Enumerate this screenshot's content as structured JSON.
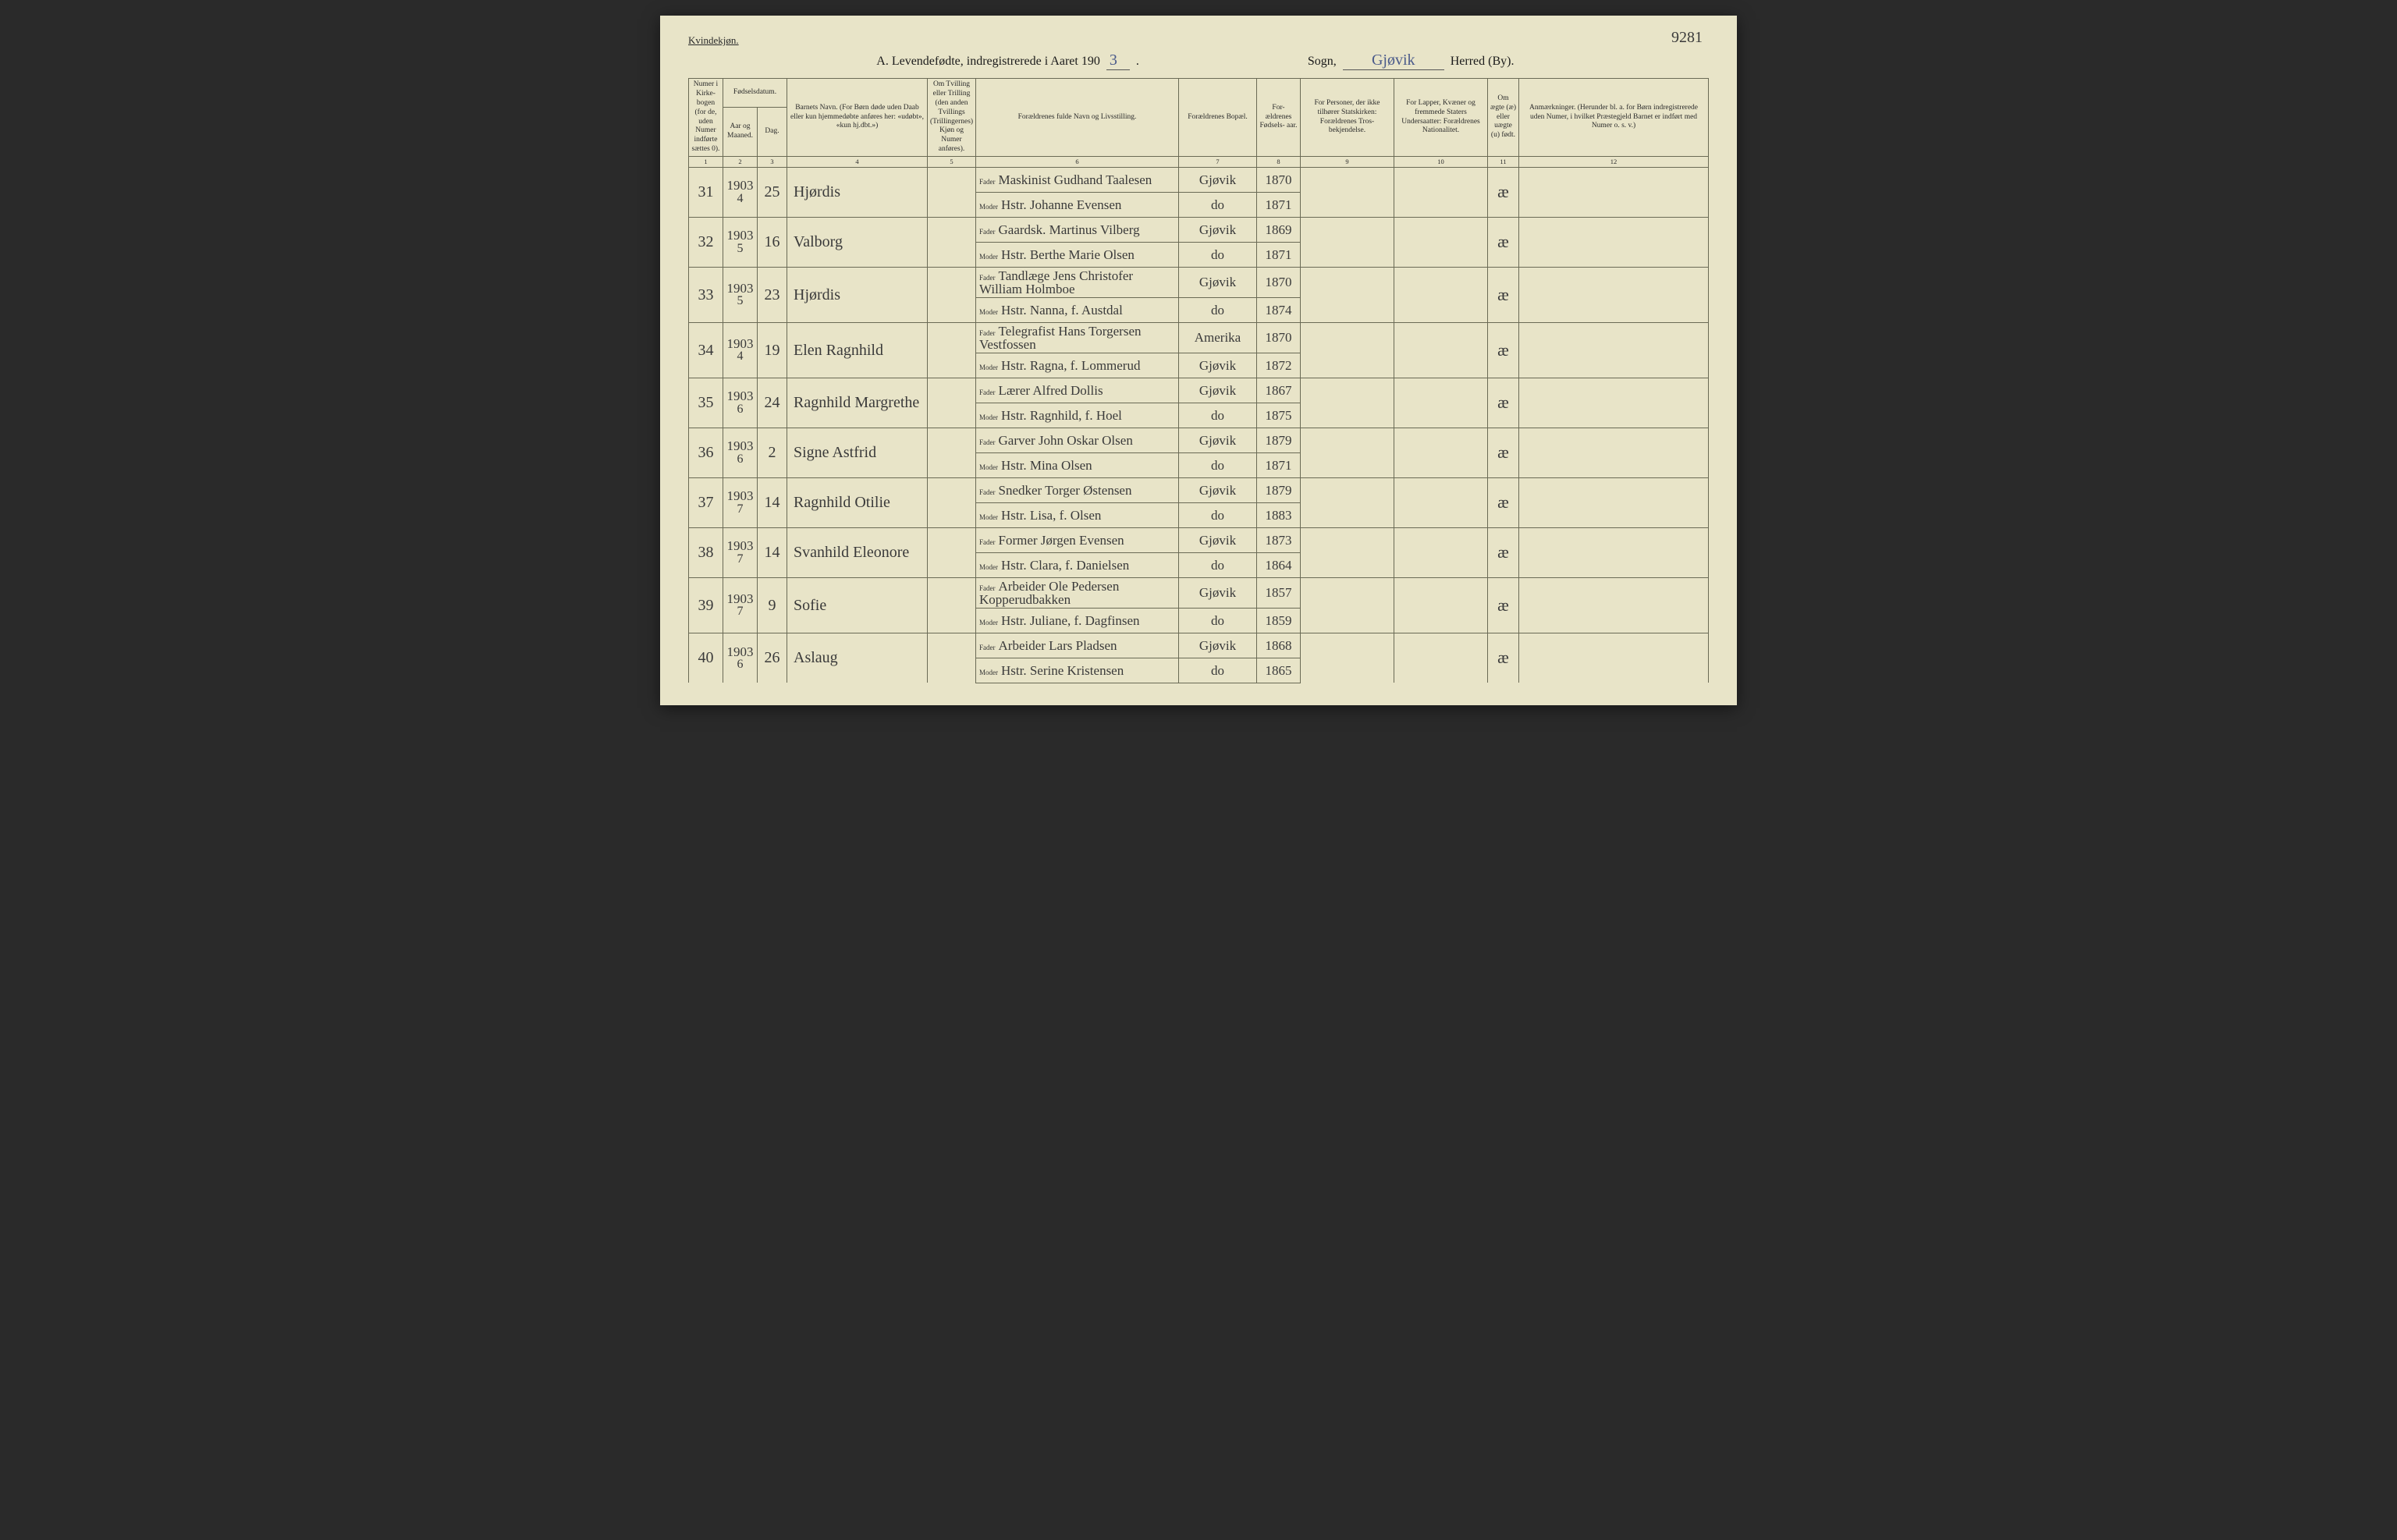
{
  "page_number": "9281",
  "top_label": "Kvindekjøn.",
  "title": {
    "prefix": "A. Levendefødte, indregistrerede i Aaret 190",
    "year_suffix": "3",
    "sogn_label": "Sogn,",
    "sogn_value": "Gjøvik",
    "herred_label": "Herred (By)."
  },
  "columns": {
    "c1": "Numer i Kirke- bogen (for de, uden Numer indførte sættes 0).",
    "c2_top": "Fødselsdatum.",
    "c2a": "Aar og Maaned.",
    "c2b": "Dag.",
    "c4": "Barnets Navn.\n(For Børn døde uden Daab eller kun hjemmedøbte anføres her: «udøbt», «kun hj.dbt.»)",
    "c5": "Om Tvilling eller Trilling (den anden Tvillings (Trillingernes) Kjøn og Numer anføres).",
    "c6": "Forældrenes fulde Navn og Livsstilling.",
    "c7": "Forældrenes Bopæl.",
    "c8": "For- ældrenes Fødsels- aar.",
    "c9": "For Personer, der ikke tilhører Statskirken: Forældrenes Tros- bekjendelse.",
    "c10": "For Lapper, Kvæner og fremmede Staters Undersaatter: Forældrenes Nationalitet.",
    "c11": "Om ægte (æ) eller uægte (u) født.",
    "c12": "Anmærkninger.\n(Herunder bl. a. for Børn indregistrerede uden Numer, i hvilket Præstegjeld Barnet er indført med Numer o. s. v.)"
  },
  "colnums": [
    "1",
    "2",
    "3",
    "4",
    "5",
    "6",
    "7",
    "8",
    "9",
    "10",
    "11",
    "12"
  ],
  "parent_labels": {
    "father": "Fader",
    "mother": "Moder"
  },
  "rows": [
    {
      "num": "31",
      "year": "1903",
      "month": "4",
      "day": "25",
      "name": "Hjørdis",
      "father": "Maskinist Gudhand Taalesen",
      "f_place": "Gjøvik",
      "f_year": "1870",
      "mother": "Hstr. Johanne Evensen",
      "m_place": "do",
      "m_year": "1871",
      "legit": "æ"
    },
    {
      "num": "32",
      "year": "1903",
      "month": "5",
      "day": "16",
      "name": "Valborg",
      "father": "Gaardsk. Martinus Vilberg",
      "f_place": "Gjøvik",
      "f_year": "1869",
      "mother": "Hstr. Berthe Marie Olsen",
      "m_place": "do",
      "m_year": "1871",
      "legit": "æ"
    },
    {
      "num": "33",
      "year": "1903",
      "month": "5",
      "day": "23",
      "name": "Hjørdis",
      "father": "Tandlæge Jens Christofer William Holmboe",
      "f_place": "Gjøvik",
      "f_year": "1870",
      "mother": "Hstr. Nanna, f. Austdal",
      "m_place": "do",
      "m_year": "1874",
      "legit": "æ"
    },
    {
      "num": "34",
      "year": "1903",
      "month": "4",
      "day": "19",
      "name": "Elen Ragnhild",
      "father": "Telegrafist Hans Torgersen Vestfossen",
      "f_place": "Amerika",
      "f_year": "1870",
      "mother": "Hstr. Ragna, f. Lommerud",
      "m_place": "Gjøvik",
      "m_year": "1872",
      "legit": "æ"
    },
    {
      "num": "35",
      "year": "1903",
      "month": "6",
      "day": "24",
      "name": "Ragnhild Margrethe",
      "father": "Lærer Alfred Dollis",
      "f_place": "Gjøvik",
      "f_year": "1867",
      "mother": "Hstr. Ragnhild, f. Hoel",
      "m_place": "do",
      "m_year": "1875",
      "legit": "æ"
    },
    {
      "num": "36",
      "year": "1903",
      "month": "6",
      "day": "2",
      "name": "Signe Astfrid",
      "father": "Garver John Oskar Olsen",
      "f_place": "Gjøvik",
      "f_year": "1879",
      "mother": "Hstr. Mina Olsen",
      "m_place": "do",
      "m_year": "1871",
      "legit": "æ"
    },
    {
      "num": "37",
      "year": "1903",
      "month": "7",
      "day": "14",
      "name": "Ragnhild Otilie",
      "father": "Snedker Torger Østensen",
      "f_place": "Gjøvik",
      "f_year": "1879",
      "mother": "Hstr. Lisa, f. Olsen",
      "m_place": "do",
      "m_year": "1883",
      "legit": "æ"
    },
    {
      "num": "38",
      "year": "1903",
      "month": "7",
      "day": "14",
      "name": "Svanhild Eleonore",
      "father": "Former Jørgen Evensen",
      "f_place": "Gjøvik",
      "f_year": "1873",
      "mother": "Hstr. Clara, f. Danielsen",
      "m_place": "do",
      "m_year": "1864",
      "legit": "æ"
    },
    {
      "num": "39",
      "year": "1903",
      "month": "7",
      "day": "9",
      "name": "Sofie",
      "father": "Arbeider Ole Pedersen Kopperudbakken",
      "f_place": "Gjøvik",
      "f_year": "1857",
      "mother": "Hstr. Juliane, f. Dagfinsen",
      "m_place": "do",
      "m_year": "1859",
      "legit": "æ"
    },
    {
      "num": "40",
      "year": "1903",
      "month": "6",
      "day": "26",
      "name": "Aslaug",
      "father": "Arbeider Lars Pladsen",
      "f_place": "Gjøvik",
      "f_year": "1868",
      "mother": "Hstr. Serine Kristensen",
      "m_place": "do",
      "m_year": "1865",
      "legit": "æ"
    }
  ],
  "style": {
    "page_bg": "#e8e4c8",
    "border_color": "#6a6a55",
    "hand_color": "#3a3a3a",
    "header_font_size_pt": 9.5,
    "hand_font_size_pt": 20
  }
}
